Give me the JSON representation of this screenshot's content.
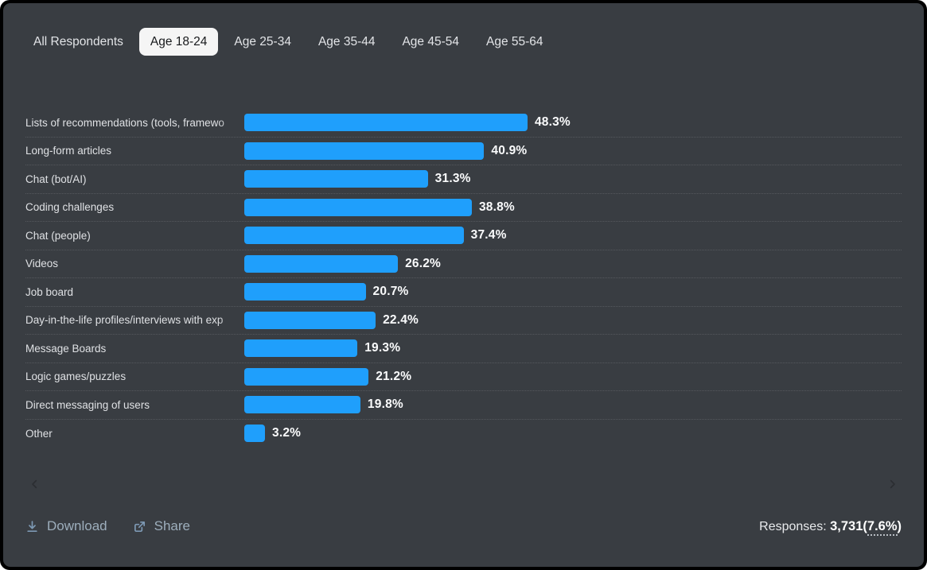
{
  "tabs": {
    "items": [
      "All Respondents",
      "Age 18-24",
      "Age 25-34",
      "Age 35-44",
      "Age 45-54",
      "Age 55-64"
    ],
    "active": "Age 18-24",
    "active_index": 1
  },
  "chart_data": {
    "type": "bar",
    "orientation": "horizontal",
    "title": "",
    "categories": [
      "Lists of recommendations (tools, framewo",
      "Long-form articles",
      "Chat (bot/AI)",
      "Coding challenges",
      "Chat (people)",
      "Videos",
      "Job board",
      "Day-in-the-life profiles/interviews with exp",
      "Message Boards",
      "Logic games/puzzles",
      "Direct messaging of users",
      "Other"
    ],
    "values": [
      48.3,
      40.9,
      31.3,
      38.8,
      37.4,
      26.2,
      20.7,
      22.4,
      19.3,
      21.2,
      19.8,
      3.2
    ],
    "value_suffix": "%",
    "xlim": [
      0,
      112
    ],
    "grid": "dotted-row-separators",
    "legend": "none",
    "bar_color": "#1f9ffc"
  },
  "pager": {
    "prev_icon": "chevron-left",
    "next_icon": "chevron-right"
  },
  "footer": {
    "download_label": "Download",
    "share_label": "Share",
    "responses_label": "Responses:",
    "responses_value": "3,731(",
    "responses_percent": "7.6%",
    "responses_suffix": ")"
  },
  "colors": {
    "background": "#393d42",
    "frame_border": "#000000",
    "bar": "#1f9ffc",
    "active_tab_bg": "#f5f5f5",
    "separator": "#55585d",
    "muted_action": "#9daebc"
  }
}
